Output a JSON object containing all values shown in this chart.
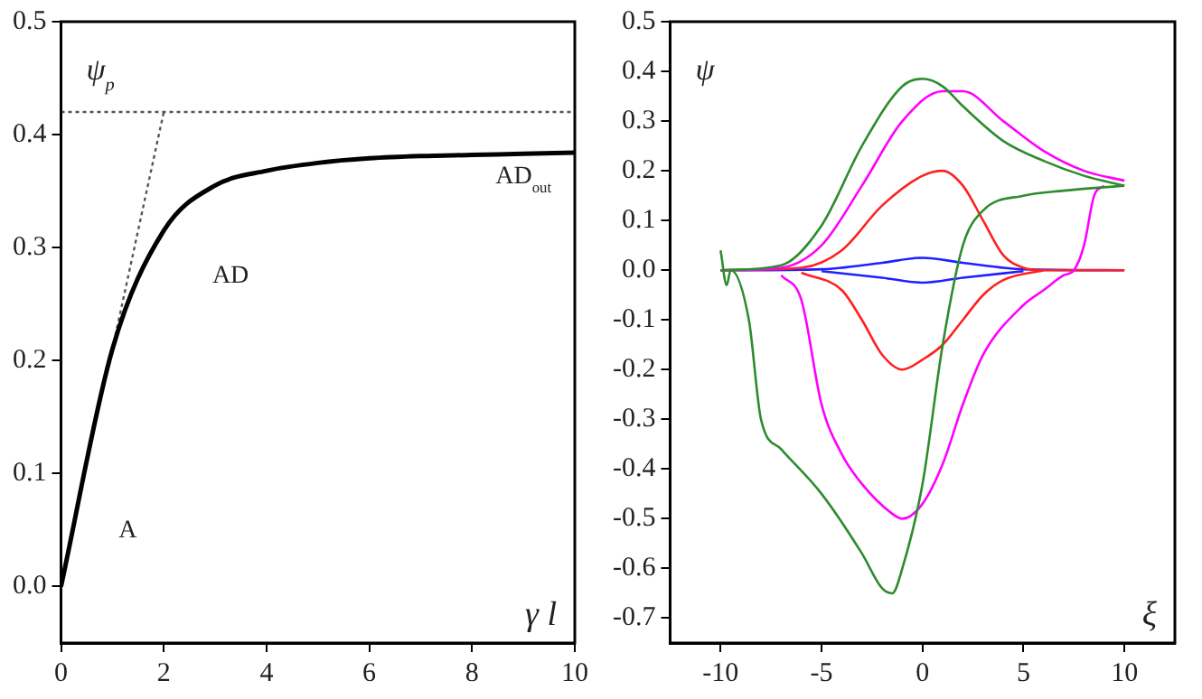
{
  "chart_data": [
    {
      "type": "line",
      "xlabel": "γ l",
      "ylabel": "ψ$_{p}$",
      "xlim": [
        0,
        10
      ],
      "ylim": [
        -0.05,
        0.5
      ],
      "xticks": [
        0,
        2,
        4,
        6,
        8,
        10
      ],
      "yticks": [
        {
          "value": 0,
          "label": "0.0"
        },
        0.1,
        0.2,
        0.3,
        0.4,
        0.5
      ],
      "grid": false,
      "legend": false,
      "marker": "none",
      "ref_lines": [
        {
          "axis": "y",
          "value": 0.42,
          "color": "#555555",
          "line_style": "dotted"
        }
      ],
      "annotations": [
        "A",
        "AD",
        "AD$_{out}$"
      ],
      "series": [
        {
          "color": "#000000",
          "x": [
            0,
            1,
            2,
            3,
            4,
            5,
            6,
            7,
            8,
            9,
            10
          ],
          "values": [
            0.0,
            0.21,
            0.315,
            0.355,
            0.368,
            0.375,
            0.379,
            0.381,
            0.382,
            0.383,
            0.384
          ]
        },
        {
          "color": "#555555",
          "line_style": "dotted",
          "x": [
            1,
            2
          ],
          "values": [
            0.21,
            0.42
          ]
        }
      ]
    },
    {
      "type": "line",
      "xlabel": "ξ",
      "ylabel": "ψ",
      "xlim": [
        -12.5,
        12.5
      ],
      "ylim": [
        -0.75,
        0.5
      ],
      "xticks": [
        -10,
        -5,
        0,
        5,
        10
      ],
      "yticks": [
        -0.7,
        -0.6,
        -0.5,
        -0.4,
        -0.3,
        -0.2,
        -0.1,
        {
          "value": 0,
          "label": "0.0"
        },
        0.1,
        0.2,
        0.3,
        0.4,
        0.5
      ],
      "grid": false,
      "legend": false,
      "marker": "none",
      "series": [
        {
          "color": "#2e8b2e",
          "x": [
            -10,
            -7,
            -5,
            -3,
            -1,
            0,
            1,
            2,
            4,
            6,
            8,
            10
          ],
          "values": [
            0.0,
            0.01,
            0.09,
            0.25,
            0.37,
            0.385,
            0.37,
            0.33,
            0.26,
            0.22,
            0.19,
            0.17
          ]
        },
        {
          "color": "#2e8b2e",
          "x": [
            -10,
            -9.7,
            -9.5,
            -8.6,
            -8,
            -7,
            -5,
            -3,
            -2,
            -1.5,
            -1,
            0,
            1,
            2,
            3,
            5,
            7,
            10
          ],
          "values": [
            0.04,
            -0.03,
            0.0,
            -0.1,
            -0.3,
            -0.36,
            -0.45,
            -0.57,
            -0.64,
            -0.65,
            -0.6,
            -0.43,
            -0.15,
            0.05,
            0.12,
            0.15,
            0.16,
            0.17
          ]
        },
        {
          "color": "#ff00ff",
          "x": [
            -10,
            -7,
            -5,
            -3,
            -1,
            1,
            2,
            4,
            6,
            8,
            10
          ],
          "values": [
            0.0,
            0.005,
            0.05,
            0.17,
            0.3,
            0.36,
            0.36,
            0.3,
            0.24,
            0.2,
            0.18
          ]
        },
        {
          "color": "#ff00ff",
          "x": [
            -7,
            -6,
            -5,
            -4,
            -3,
            -1.5,
            -1,
            0,
            1,
            2,
            3,
            5,
            6,
            7,
            7.5,
            8,
            8.5,
            9
          ],
          "values": [
            -0.01,
            -0.06,
            -0.27,
            -0.37,
            -0.43,
            -0.49,
            -0.5,
            -0.47,
            -0.39,
            -0.27,
            -0.17,
            -0.07,
            -0.04,
            -0.01,
            0.0,
            0.05,
            0.15,
            0.17
          ]
        },
        {
          "color": "#ff2020",
          "x": [
            -10,
            -6,
            -4,
            -2,
            0,
            1,
            2,
            3,
            4,
            5,
            6,
            10
          ],
          "values": [
            0.0,
            0.005,
            0.04,
            0.13,
            0.19,
            0.2,
            0.17,
            0.1,
            0.03,
            0.005,
            0.0,
            0.0
          ]
        },
        {
          "color": "#ff2020",
          "x": [
            -6,
            -4,
            -3,
            -2,
            -1,
            0,
            1,
            2,
            3,
            4,
            6
          ],
          "values": [
            -0.005,
            -0.04,
            -0.1,
            -0.17,
            -0.2,
            -0.18,
            -0.15,
            -0.1,
            -0.05,
            -0.02,
            0.0
          ]
        },
        {
          "color": "#2020ff",
          "x": [
            -10,
            -5,
            -2,
            0,
            2,
            5,
            10
          ],
          "values": [
            0.0,
            0.002,
            0.015,
            0.025,
            0.015,
            0.002,
            0.0
          ]
        },
        {
          "color": "#2020ff",
          "x": [
            -5,
            -2,
            0,
            2,
            5
          ],
          "values": [
            -0.002,
            -0.015,
            -0.025,
            -0.015,
            -0.002
          ]
        }
      ]
    }
  ]
}
